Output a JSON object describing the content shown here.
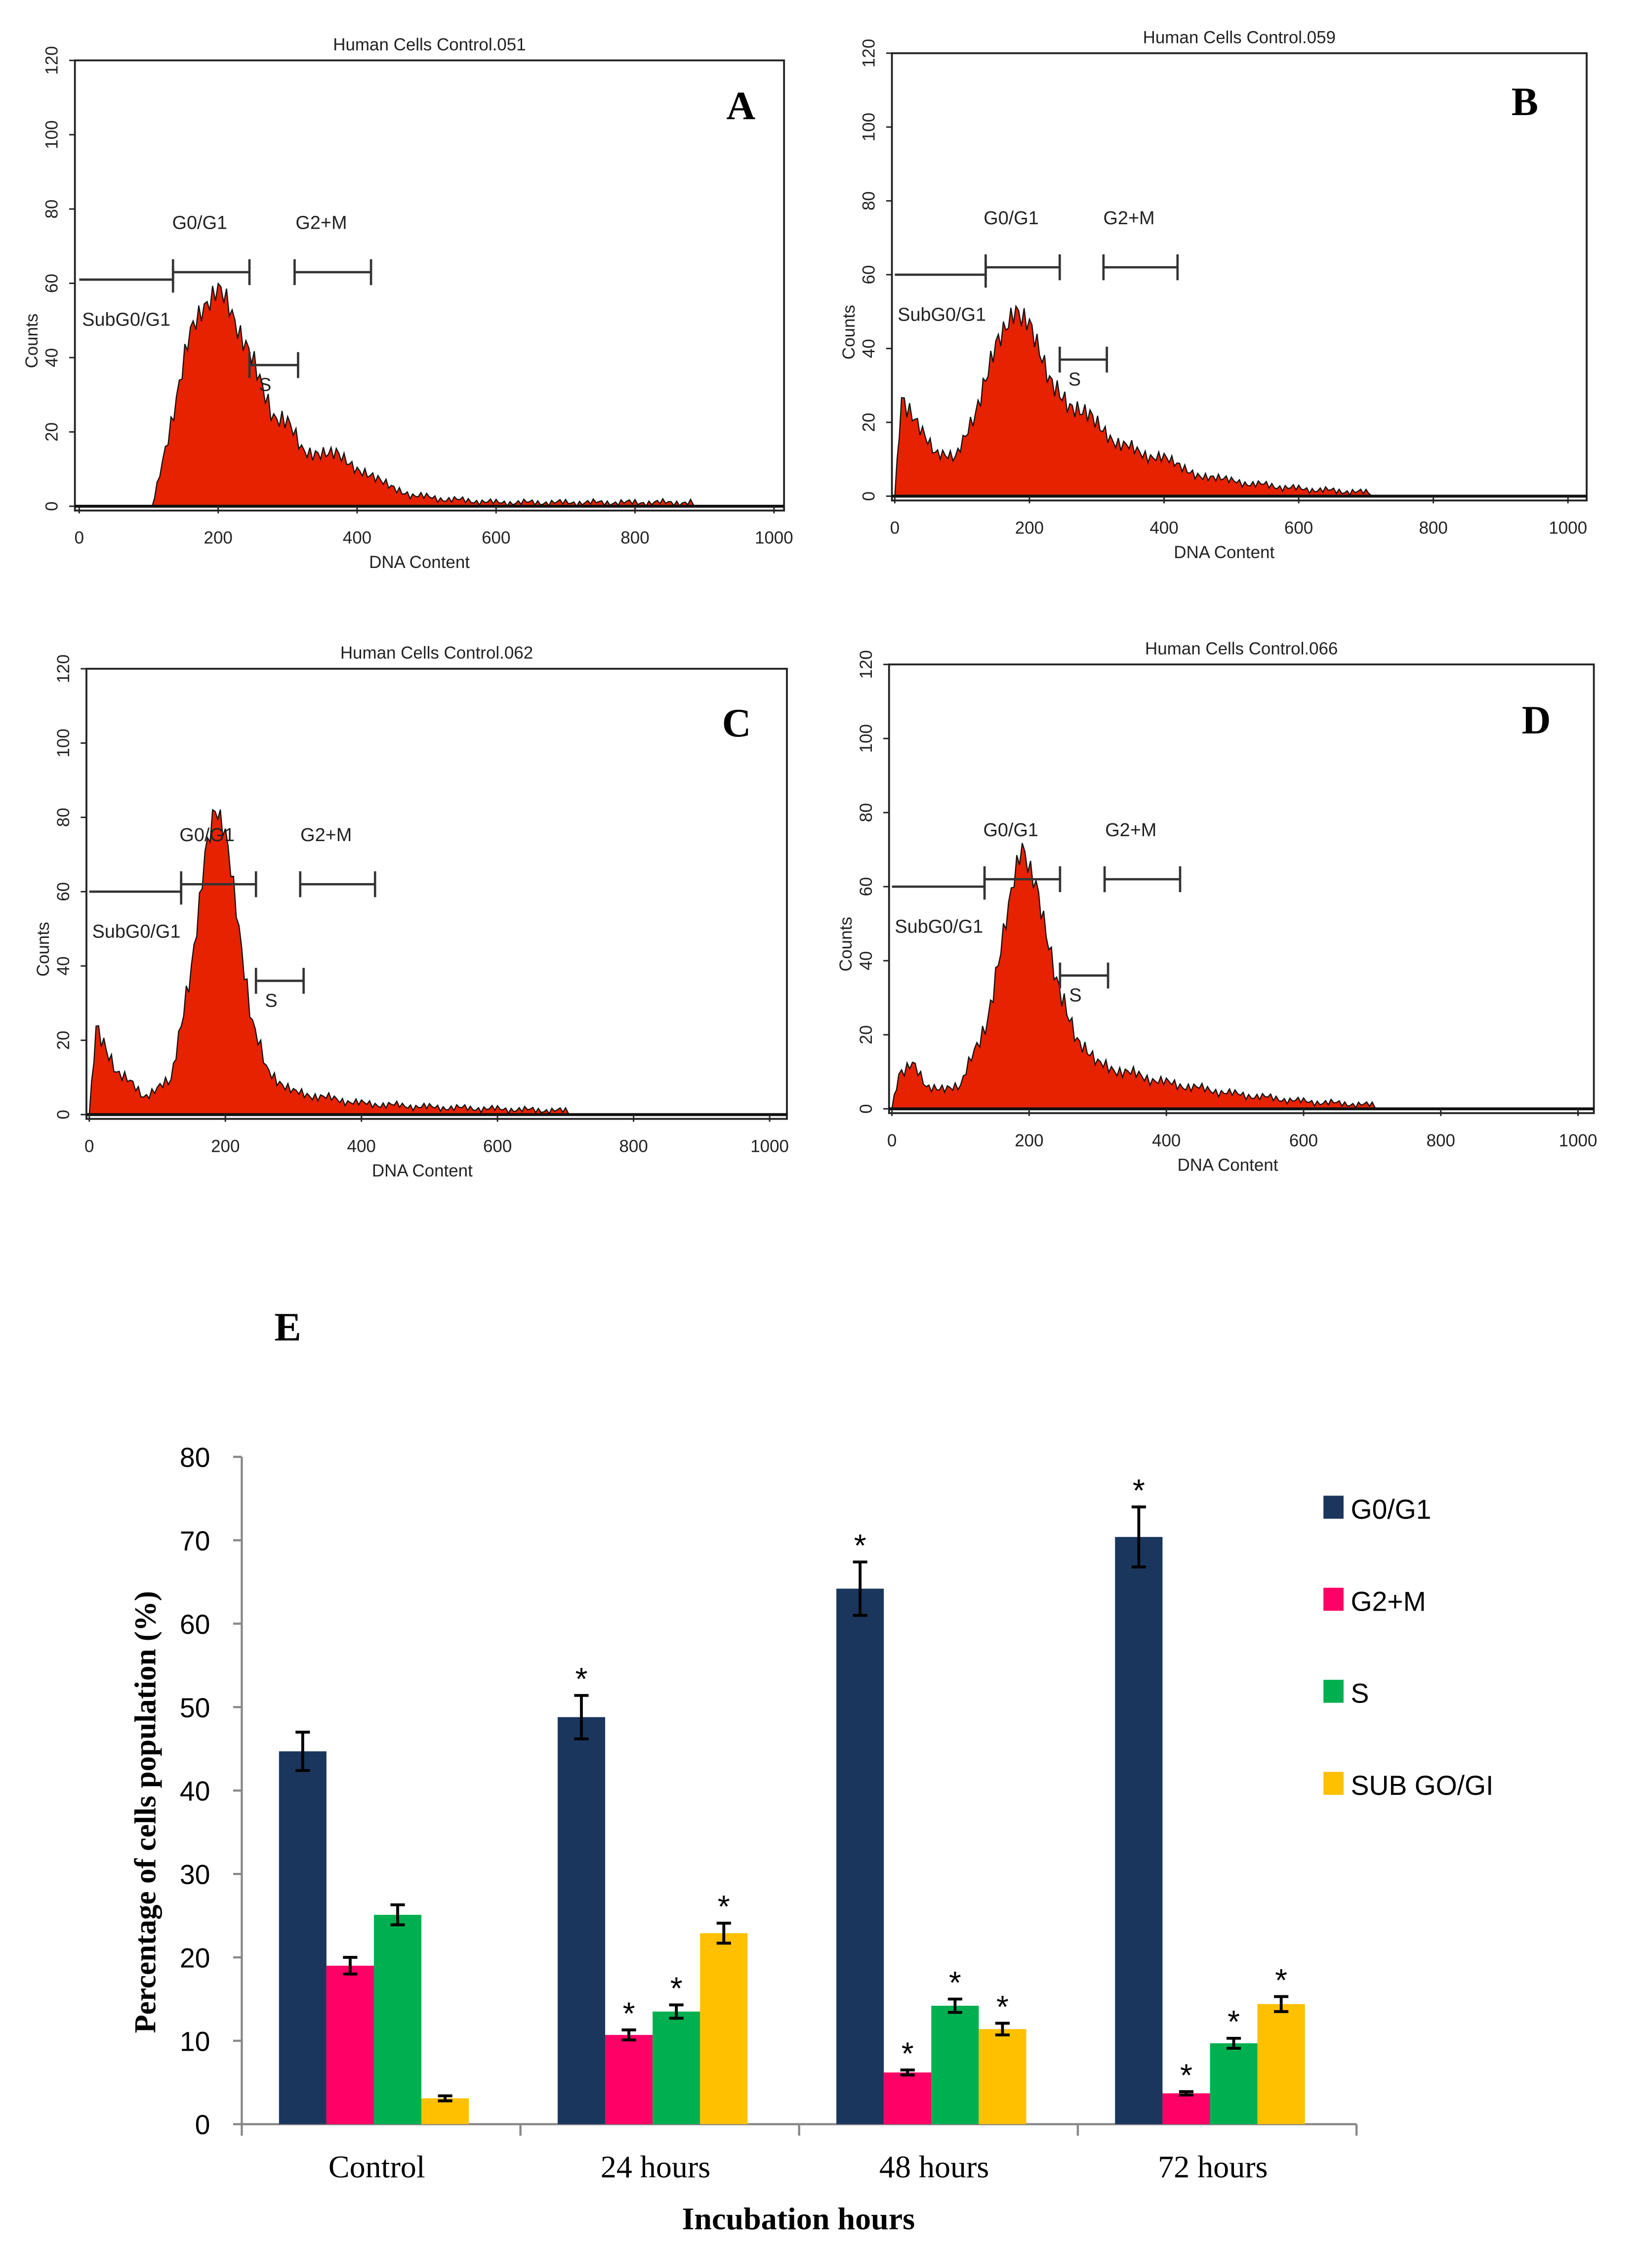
{
  "chart_data": [
    {
      "type": "area",
      "panel_label": "A",
      "title": "Human Cells Control.051",
      "xlabel": "DNA Content",
      "ylabel": "Counts",
      "xlim": [
        0,
        1000
      ],
      "ylim": [
        0,
        120
      ],
      "xticks": [
        "0",
        "200",
        "400",
        "600",
        "800",
        "1000"
      ],
      "yticks": [
        "0",
        "20",
        "40",
        "60",
        "80",
        "100",
        "120"
      ],
      "gates": [
        {
          "label": "SubG0/G1",
          "range": [
            0,
            135
          ],
          "level": 61
        },
        {
          "label": "G0/G1",
          "range": [
            135,
            245
          ],
          "level": 63
        },
        {
          "label": "S",
          "range": [
            245,
            315
          ],
          "level": 38
        },
        {
          "label": "G2+M",
          "range": [
            310,
            420
          ],
          "level": 63
        }
      ],
      "x": [
        0,
        105,
        112,
        120,
        140,
        160,
        180,
        200,
        220,
        240,
        260,
        280,
        300,
        320,
        340,
        370,
        400,
        430,
        480,
        520,
        600,
        700,
        880,
        885,
        1000
      ],
      "y": [
        0,
        0,
        5,
        12,
        30,
        46,
        55,
        58,
        52,
        44,
        33,
        25,
        22,
        16,
        14,
        14,
        9,
        7,
        3,
        2,
        1,
        1,
        1,
        0,
        0
      ]
    },
    {
      "type": "area",
      "panel_label": "B",
      "title": "Human Cells Control.059",
      "xlabel": "DNA Content",
      "ylabel": "Counts",
      "xlim": [
        0,
        1000
      ],
      "ylim": [
        0,
        120
      ],
      "xticks": [
        "0",
        "200",
        "400",
        "600",
        "800",
        "1000"
      ],
      "yticks": [
        "0",
        "20",
        "40",
        "60",
        "80",
        "100",
        "120"
      ],
      "gates": [
        {
          "label": "SubG0/G1",
          "range": [
            0,
            135
          ],
          "level": 60
        },
        {
          "label": "G0/G1",
          "range": [
            135,
            245
          ],
          "level": 62
        },
        {
          "label": "S",
          "range": [
            245,
            315
          ],
          "level": 37
        },
        {
          "label": "G2+M",
          "range": [
            310,
            420
          ],
          "level": 62
        }
      ],
      "x": [
        0,
        10,
        30,
        60,
        90,
        120,
        150,
        180,
        200,
        230,
        260,
        290,
        320,
        360,
        400,
        450,
        500,
        600,
        700,
        710,
        1000
      ],
      "y": [
        0,
        28,
        20,
        11,
        10,
        22,
        42,
        52,
        46,
        30,
        23,
        22,
        16,
        12,
        10,
        6,
        4,
        2,
        1,
        0,
        0
      ]
    },
    {
      "type": "area",
      "panel_label": "C",
      "title": "Human Cells Control.062",
      "xlabel": "DNA Content",
      "ylabel": "Counts",
      "xlim": [
        0,
        1000
      ],
      "ylim": [
        0,
        120
      ],
      "xticks": [
        "0",
        "200",
        "400",
        "600",
        "800",
        "1000"
      ],
      "yticks": [
        "0",
        "20",
        "40",
        "60",
        "80",
        "100",
        "120"
      ],
      "gates": [
        {
          "label": "SubG0/G1",
          "range": [
            0,
            135
          ],
          "level": 60
        },
        {
          "label": "G0/G1",
          "range": [
            135,
            245
          ],
          "level": 62
        },
        {
          "label": "S",
          "range": [
            245,
            315
          ],
          "level": 36
        },
        {
          "label": "G2+M",
          "range": [
            310,
            420
          ],
          "level": 62
        }
      ],
      "x": [
        0,
        10,
        40,
        80,
        120,
        150,
        170,
        185,
        200,
        220,
        240,
        260,
        300,
        400,
        500,
        700,
        705,
        1000
      ],
      "y": [
        0,
        25,
        12,
        5,
        9,
        40,
        70,
        82,
        75,
        50,
        25,
        12,
        6,
        3,
        2,
        1,
        0,
        0
      ]
    },
    {
      "type": "area",
      "panel_label": "D",
      "title": "Human Cells Control.066",
      "xlabel": "DNA Content",
      "ylabel": "Counts",
      "xlim": [
        0,
        1000
      ],
      "ylim": [
        0,
        120
      ],
      "xticks": [
        "0",
        "200",
        "400",
        "600",
        "800",
        "1000"
      ],
      "yticks": [
        "0",
        "20",
        "40",
        "60",
        "80",
        "100",
        "120"
      ],
      "gates": [
        {
          "label": "SubG0/G1",
          "range": [
            0,
            135
          ],
          "level": 60
        },
        {
          "label": "G0/G1",
          "range": [
            135,
            245
          ],
          "level": 62
        },
        {
          "label": "S",
          "range": [
            245,
            315
          ],
          "level": 36
        },
        {
          "label": "G2+M",
          "range": [
            310,
            420
          ],
          "level": 62
        }
      ],
      "x": [
        0,
        10,
        30,
        50,
        100,
        140,
        170,
        190,
        210,
        240,
        270,
        300,
        400,
        500,
        600,
        700,
        705,
        1000
      ],
      "y": [
        0,
        10,
        12,
        6,
        6,
        25,
        55,
        70,
        62,
        35,
        18,
        12,
        7,
        4,
        2,
        1,
        0,
        0
      ]
    },
    {
      "type": "bar",
      "panel_label": "E",
      "xlabel": "Incubation hours",
      "ylabel": "Percentage of cells population (%)",
      "ylim": [
        0,
        80
      ],
      "yticks": [
        "0",
        "10",
        "20",
        "30",
        "40",
        "50",
        "60",
        "70",
        "80"
      ],
      "categories": [
        "Control",
        "24 hours",
        "48 hours",
        "72 hours"
      ],
      "legend_position": "right",
      "significance_marker": "*",
      "series": [
        {
          "name": "G0/G1",
          "color": "#1b365d",
          "values": [
            44.7,
            48.8,
            64.2,
            70.4
          ],
          "errors": [
            2.3,
            2.6,
            3.2,
            3.6
          ],
          "significant": [
            false,
            true,
            true,
            true
          ]
        },
        {
          "name": "G2+M",
          "color": "#ff0066",
          "values": [
            19.0,
            10.7,
            6.2,
            3.7
          ],
          "errors": [
            1.0,
            0.6,
            0.3,
            0.2
          ],
          "significant": [
            false,
            true,
            true,
            true
          ]
        },
        {
          "name": "S",
          "color": "#00b050",
          "values": [
            25.1,
            13.5,
            14.2,
            9.7
          ],
          "errors": [
            1.2,
            0.8,
            0.8,
            0.6
          ],
          "significant": [
            false,
            true,
            true,
            true
          ]
        },
        {
          "name": "SUB GO/GI",
          "color": "#ffc000",
          "values": [
            3.1,
            22.9,
            11.4,
            14.4
          ],
          "errors": [
            0.3,
            1.2,
            0.7,
            0.9
          ],
          "significant": [
            false,
            true,
            true,
            true
          ]
        }
      ]
    }
  ],
  "colors": {
    "histogram_fill": "#e62200",
    "axis": "#222222"
  }
}
